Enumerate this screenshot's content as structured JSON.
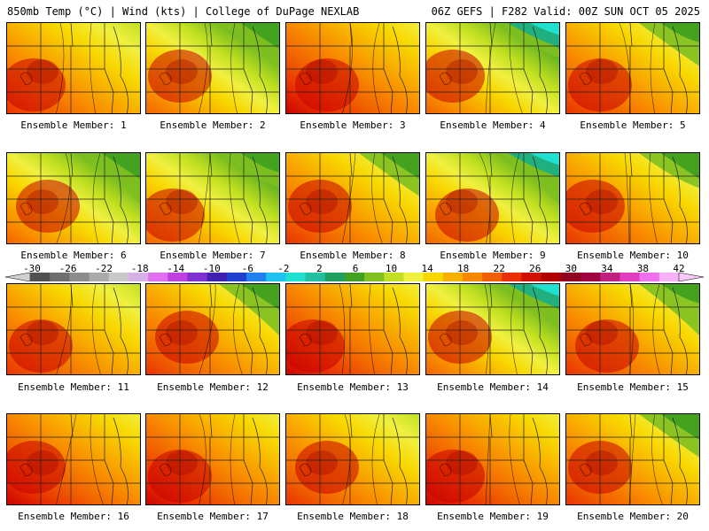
{
  "header": {
    "title_left": "850mb Temp (°C) | Wind (kts) | College of DuPage NEXLAB",
    "title_right": "06Z GEFS | F282 Valid: 00Z SUN OCT 05 2025"
  },
  "colorbar": {
    "labels": [
      "-30",
      "-26",
      "-22",
      "-18",
      "-14",
      "-10",
      "-6",
      "-2",
      "2",
      "6",
      "10",
      "14",
      "18",
      "22",
      "26",
      "30",
      "34",
      "38",
      "42"
    ],
    "colors": [
      "#505050",
      "#6e6e6e",
      "#8c8c8c",
      "#aaaaaa",
      "#c8c8c8",
      "#d8b0e8",
      "#e070f0",
      "#c040e0",
      "#8030d0",
      "#4020b0",
      "#2040d0",
      "#2080f0",
      "#20c0f0",
      "#20e0d0",
      "#20c0a0",
      "#20a060",
      "#40a020",
      "#80c020",
      "#c0e020",
      "#f0f040",
      "#f8d800",
      "#f8b000",
      "#f88800",
      "#f06000",
      "#e83000",
      "#d01000",
      "#b00000",
      "#900020",
      "#a00040",
      "#c02080",
      "#e040c0",
      "#f070f0",
      "#f8b0f8"
    ]
  },
  "members": [
    {
      "label": "Ensemble Member: 1"
    },
    {
      "label": "Ensemble Member: 2"
    },
    {
      "label": "Ensemble Member: 3"
    },
    {
      "label": "Ensemble Member: 4"
    },
    {
      "label": "Ensemble Member: 5"
    },
    {
      "label": "Ensemble Member: 6"
    },
    {
      "label": "Ensemble Member: 7"
    },
    {
      "label": "Ensemble Member: 8"
    },
    {
      "label": "Ensemble Member: 9"
    },
    {
      "label": "Ensemble Member: 10"
    },
    {
      "label": "Ensemble Member: 11"
    },
    {
      "label": "Ensemble Member: 12"
    },
    {
      "label": "Ensemble Member: 13"
    },
    {
      "label": "Ensemble Member: 14"
    },
    {
      "label": "Ensemble Member: 15"
    },
    {
      "label": "Ensemble Member: 16"
    },
    {
      "label": "Ensemble Member: 17"
    },
    {
      "label": "Ensemble Member: 18"
    },
    {
      "label": "Ensemble Member: 19"
    },
    {
      "label": "Ensemble Member: 20"
    }
  ]
}
